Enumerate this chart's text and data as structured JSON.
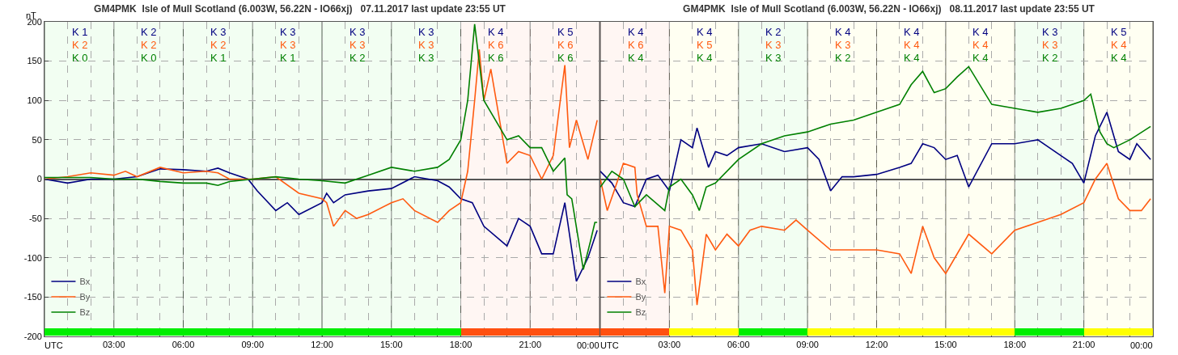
{
  "chart_data": [
    {
      "type": "line",
      "title": "GM4PMK  Isle of Mull Scotland (6.003W, 56.22N - IO66xj)   07.11.2017 last update 23:55 UT",
      "ylabel": "nT",
      "grid": true,
      "legend": "bottom left",
      "marker": "none",
      "line_style": "solid",
      "xlim": [
        0,
        24
      ],
      "ylim": [
        -200,
        200
      ],
      "yticks": [
        -200,
        -150,
        -100,
        -50,
        0,
        50,
        100,
        150,
        200
      ],
      "xticks": [
        {
          "value": 0,
          "label": "UTC"
        },
        {
          "value": 1,
          "label": null
        },
        {
          "value": 2,
          "label": null
        },
        {
          "value": 3,
          "label": "03:00"
        },
        {
          "value": 4,
          "label": null
        },
        {
          "value": 5,
          "label": null
        },
        {
          "value": 6,
          "label": "06:00"
        },
        {
          "value": 7,
          "label": null
        },
        {
          "value": 8,
          "label": null
        },
        {
          "value": 9,
          "label": "09:00"
        },
        {
          "value": 10,
          "label": null
        },
        {
          "value": 11,
          "label": null
        },
        {
          "value": 12,
          "label": "12:00"
        },
        {
          "value": 13,
          "label": null
        },
        {
          "value": 14,
          "label": null
        },
        {
          "value": 15,
          "label": "15:00"
        },
        {
          "value": 16,
          "label": null
        },
        {
          "value": 17,
          "label": null
        },
        {
          "value": 18,
          "label": "18:00"
        },
        {
          "value": 19,
          "label": null
        },
        {
          "value": 20,
          "label": null
        },
        {
          "value": 21,
          "label": "21:00"
        },
        {
          "value": 22,
          "label": null
        },
        {
          "value": 23,
          "label": null
        },
        {
          "value": 24,
          "label": "00:00"
        }
      ],
      "series": [
        {
          "name": "Bx",
          "color": "#000080",
          "x": [
            0,
            1,
            2,
            3,
            4,
            5,
            6,
            7,
            7.5,
            8,
            8.8,
            9.2,
            10,
            10.5,
            11,
            12,
            12.2,
            12.5,
            13,
            14,
            15,
            16,
            17,
            17.5,
            18,
            18.5,
            19,
            20,
            20.5,
            21,
            21.5,
            22,
            22.5,
            23,
            23.5,
            23.9
          ],
          "values": [
            0,
            -5,
            0,
            0,
            3,
            13,
            12,
            10,
            14,
            8,
            0,
            -15,
            -40,
            -30,
            -45,
            -30,
            -18,
            -30,
            -20,
            -15,
            -12,
            3,
            -2,
            -10,
            -25,
            -30,
            -60,
            -85,
            -50,
            -60,
            -95,
            -95,
            -30,
            -130,
            -100,
            -65
          ]
        },
        {
          "name": "By",
          "color": "#ff5a10",
          "x": [
            0,
            1,
            2,
            3,
            3.5,
            4,
            5,
            6,
            7,
            7.5,
            8,
            9,
            10,
            11,
            12,
            12.2,
            12.5,
            13,
            13.5,
            14,
            15,
            15.5,
            16,
            17,
            17.5,
            18,
            18.3,
            18.6,
            18.8,
            19,
            19.3,
            20,
            20.5,
            21,
            21.5,
            22,
            22.5,
            22.7,
            23,
            23.5,
            23.9
          ],
          "values": [
            0,
            3,
            8,
            5,
            10,
            3,
            15,
            8,
            10,
            8,
            0,
            0,
            3,
            -18,
            -25,
            -30,
            -60,
            -40,
            -50,
            -45,
            -30,
            -25,
            -40,
            -55,
            -40,
            -30,
            10,
            100,
            165,
            100,
            140,
            20,
            35,
            30,
            0,
            30,
            145,
            40,
            75,
            25,
            75
          ]
        },
        {
          "name": "Bz",
          "color": "#008000",
          "x": [
            0,
            1,
            2,
            3,
            4,
            5,
            6,
            7,
            7.5,
            8,
            9,
            10,
            11,
            12,
            13,
            14,
            15,
            16,
            17,
            17.5,
            18,
            18.3,
            18.6,
            19,
            20,
            20.5,
            21,
            21.5,
            22,
            22.5,
            22.6,
            22.8,
            23.3,
            23.6,
            23.8,
            23.9
          ],
          "values": [
            2,
            2,
            2,
            0,
            0,
            -3,
            -5,
            -5,
            -8,
            -3,
            0,
            3,
            0,
            -2,
            -5,
            5,
            15,
            10,
            15,
            25,
            50,
            100,
            197,
            100,
            50,
            55,
            40,
            40,
            10,
            27,
            -20,
            -25,
            -115,
            -80,
            -55,
            -55
          ]
        }
      ],
      "bands": [
        {
          "axis": "x",
          "from": 0,
          "to": 18,
          "color": "#00ee00"
        },
        {
          "axis": "x",
          "from": 18,
          "to": 24,
          "color": "#ff5010"
        }
      ],
      "annotations": [
        "K 1",
        "K 2",
        "K 3",
        "K 3",
        "K 3",
        "K 3",
        "K 4",
        "K 5",
        "K 2",
        "K 2",
        "K 2",
        "K 3",
        "K 3",
        "K 3",
        "K 6",
        "K 6",
        "K 0",
        "K 0",
        "K 1",
        "K 1",
        "K 2",
        "K 3",
        "K 6",
        "K 6"
      ]
    },
    {
      "type": "line",
      "title": "GM4PMK  Isle of Mull Scotland (6.003W, 56.22N - IO66xj)   08.11.2017 last update 23:55 UT",
      "grid": true,
      "legend": "bottom left",
      "marker": "none",
      "line_style": "solid",
      "tick_labels": "x",
      "xlim": [
        0,
        24
      ],
      "ylim": [
        -200,
        200
      ],
      "yticks": [
        -200,
        -150,
        -100,
        -50,
        0,
        50,
        100,
        150,
        200
      ],
      "xticks": [
        {
          "value": 0,
          "label": "UTC"
        },
        {
          "value": 1,
          "label": null
        },
        {
          "value": 2,
          "label": null
        },
        {
          "value": 3,
          "label": "03:00"
        },
        {
          "value": 4,
          "label": null
        },
        {
          "value": 5,
          "label": null
        },
        {
          "value": 6,
          "label": "06:00"
        },
        {
          "value": 7,
          "label": null
        },
        {
          "value": 8,
          "label": null
        },
        {
          "value": 9,
          "label": "09:00"
        },
        {
          "value": 10,
          "label": null
        },
        {
          "value": 11,
          "label": null
        },
        {
          "value": 12,
          "label": "12:00"
        },
        {
          "value": 13,
          "label": null
        },
        {
          "value": 14,
          "label": null
        },
        {
          "value": 15,
          "label": "15:00"
        },
        {
          "value": 16,
          "label": null
        },
        {
          "value": 17,
          "label": null
        },
        {
          "value": 18,
          "label": "18:00"
        },
        {
          "value": 19,
          "label": null
        },
        {
          "value": 20,
          "label": null
        },
        {
          "value": 21,
          "label": "21:00"
        },
        {
          "value": 22,
          "label": null
        },
        {
          "value": 23,
          "label": null
        },
        {
          "value": 24,
          "label": "00:00"
        }
      ],
      "series": [
        {
          "name": "Bx",
          "color": "#000080",
          "x": [
            0,
            0.5,
            1,
            1.5,
            2,
            2.5,
            3,
            3.5,
            4,
            4.2,
            4.7,
            5,
            5.5,
            6,
            7,
            8,
            9,
            9.5,
            10,
            10.5,
            11,
            12,
            13,
            13.5,
            14,
            14.5,
            15,
            15.5,
            16,
            17,
            18,
            19,
            20,
            20.5,
            21,
            21.5,
            22,
            22.5,
            23,
            23.3,
            23.9
          ],
          "values": [
            10,
            -5,
            -30,
            -35,
            0,
            5,
            -15,
            50,
            40,
            65,
            15,
            35,
            30,
            40,
            45,
            35,
            40,
            25,
            -15,
            3,
            3,
            6,
            15,
            20,
            45,
            40,
            25,
            30,
            -10,
            45,
            45,
            50,
            30,
            20,
            -5,
            55,
            85,
            35,
            25,
            45,
            25
          ]
        },
        {
          "name": "By",
          "color": "#ff5a10",
          "x": [
            0,
            0.3,
            0.6,
            1,
            1.5,
            1.6,
            2,
            2.5,
            2.8,
            3,
            3.5,
            4,
            4.2,
            4.6,
            5,
            5.5,
            6,
            6.5,
            7,
            8,
            8.5,
            9,
            10,
            11,
            12,
            13,
            13.5,
            14,
            14.5,
            15,
            16,
            17,
            18,
            19,
            20,
            21,
            21.5,
            22,
            22.5,
            23,
            23.5,
            23.9
          ],
          "values": [
            0,
            -40,
            -15,
            20,
            15,
            -20,
            -60,
            -60,
            -145,
            -60,
            -65,
            -90,
            -160,
            -70,
            -90,
            -70,
            -85,
            -65,
            -60,
            -65,
            -52,
            -65,
            -90,
            -90,
            -90,
            -95,
            -120,
            -60,
            -100,
            -120,
            -70,
            -95,
            -65,
            -55,
            -45,
            -30,
            0,
            20,
            -25,
            -40,
            -40,
            -25
          ]
        },
        {
          "name": "Bz",
          "color": "#008000",
          "x": [
            0,
            0.5,
            1,
            1.5,
            2,
            2.8,
            3,
            3.5,
            4,
            4.3,
            4.6,
            5,
            6,
            7,
            8,
            9,
            10,
            11,
            12,
            13,
            13.5,
            14,
            14.5,
            15,
            15.5,
            16,
            17,
            18,
            19,
            20,
            21,
            21.3,
            21.7,
            22,
            22.3,
            23,
            23.9
          ],
          "values": [
            -10,
            10,
            0,
            -35,
            -20,
            -40,
            -10,
            0,
            -20,
            -40,
            -10,
            -5,
            25,
            45,
            55,
            60,
            70,
            75,
            85,
            95,
            120,
            137,
            110,
            115,
            130,
            143,
            95,
            90,
            85,
            90,
            100,
            108,
            60,
            45,
            40,
            50,
            67
          ]
        }
      ],
      "bands": [
        {
          "axis": "x",
          "from": 0,
          "to": 3,
          "color": "#ff5010"
        },
        {
          "axis": "x",
          "from": 3,
          "to": 6,
          "color": "#ffff00"
        },
        {
          "axis": "x",
          "from": 6,
          "to": 9,
          "color": "#00ee00"
        },
        {
          "axis": "x",
          "from": 9,
          "to": 18,
          "color": "#ffff00"
        },
        {
          "axis": "x",
          "from": 18,
          "to": 21,
          "color": "#00ee00"
        },
        {
          "axis": "x",
          "from": 21,
          "to": 24,
          "color": "#ffff00"
        }
      ],
      "annotations": [
        "K 4",
        "K 4",
        "K 2",
        "K 4",
        "K 4",
        "K 4",
        "K 3",
        "K 5",
        "K 6",
        "K 5",
        "K 3",
        "K 3",
        "K 4",
        "K 4",
        "K 3",
        "K 4",
        "K 4",
        "K 4",
        "K 3",
        "K 2",
        "K 4",
        "K 4",
        "K 2",
        "K 4"
      ]
    }
  ]
}
